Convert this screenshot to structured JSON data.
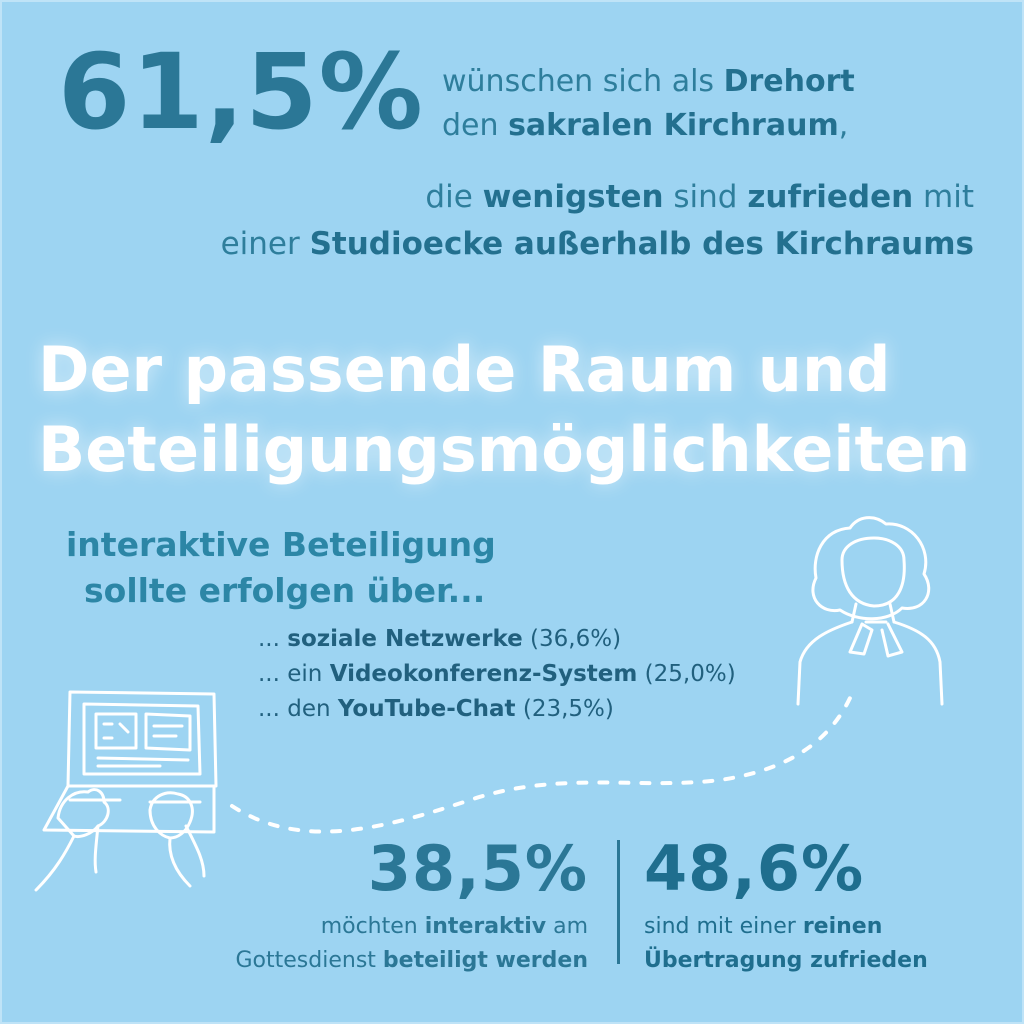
{
  "top": {
    "big_percent": "61,5%",
    "line1_pre": "wünschen sich als ",
    "line1_bold": "Drehort",
    "line2_pre": "den ",
    "line2_bold": "sakralen Kirchraum",
    "line2_post": ",",
    "line3_pre": "die ",
    "line3_bold1": "wenigsten",
    "line3_mid": " sind ",
    "line3_bold2": "zufrieden",
    "line3_post": " mit",
    "line4_pre": "einer ",
    "line4_bold": "Studioecke außerhalb des Kirchraums"
  },
  "headline": {
    "line1": "Der passende Raum und",
    "line2": "Beteiligungsmöglichkeiten"
  },
  "intro": {
    "line1": "interaktive Beteiligung",
    "line2": "sollte erfolgen über..."
  },
  "options": [
    {
      "pre": "... ",
      "bold": "soziale Netzwerke",
      "value": " (36,6%)"
    },
    {
      "pre": "... ein ",
      "bold": "Videokonferenz-System",
      "value": " (25,0%)"
    },
    {
      "pre": "... den ",
      "bold": "YouTube-Chat",
      "value": " (23,5%)"
    }
  ],
  "stat_left": {
    "num": "38,5%",
    "l1_pre": "möchten ",
    "l1_bold": "interaktiv",
    "l1_post": " am",
    "l2_pre": "Gottesdienst ",
    "l2_bold": "beteiligt werden"
  },
  "stat_right": {
    "num": "48,6%",
    "l1_pre": "sind mit einer ",
    "l1_bold": "reinen",
    "l2_bold": "Übertragung zufrieden"
  },
  "icons": [
    "pastor-illustration-icon",
    "laptop-hands-illustration-icon",
    "dotted-path-decoration"
  ],
  "colors": {
    "background": "#9dd4f2",
    "accent_dark": "#2b7796",
    "headline": "#ffffff"
  }
}
